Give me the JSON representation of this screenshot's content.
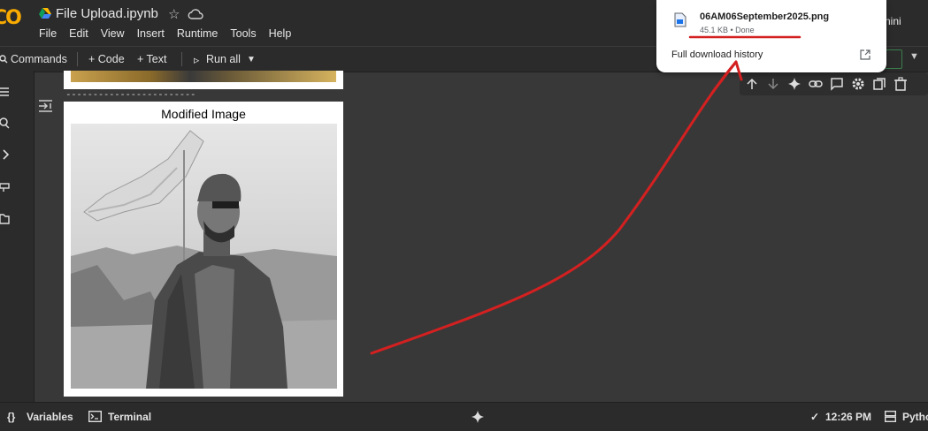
{
  "header": {
    "logo_text": "CO",
    "title": "File Upload.ipynb",
    "menu": [
      "File",
      "Edit",
      "View",
      "Insert",
      "Runtime",
      "Tools",
      "Help"
    ],
    "gemini_label": "nini"
  },
  "toolbar": {
    "commands": "Commands",
    "add_code": "+ Code",
    "add_text": "+ Text",
    "run_all": "Run all"
  },
  "output": {
    "separator": "------------------------",
    "figure_title": "Modified Image"
  },
  "downloads": {
    "file_name": "06AM06September2025.png",
    "file_status": "45.1 KB • Done",
    "full_history": "Full download history"
  },
  "statusbar": {
    "variables": "Variables",
    "terminal": "Terminal",
    "time": "12:26 PM",
    "runtime": "Pytho"
  },
  "colors": {
    "annotation": "#d42020",
    "accent_logo": "#f9ab00"
  }
}
